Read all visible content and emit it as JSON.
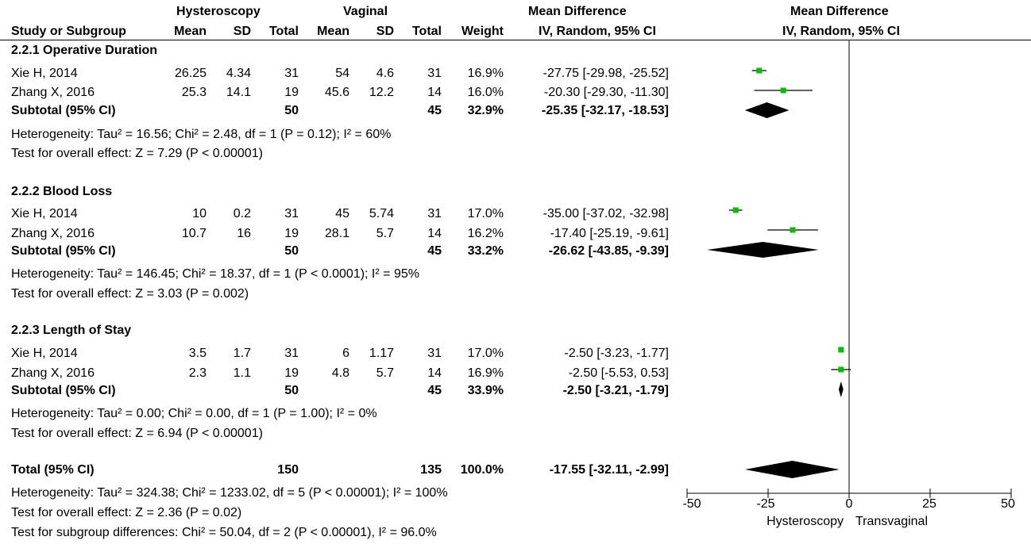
{
  "headers": {
    "group1": "Hysteroscopy",
    "group2": "Vaginal",
    "md_title": "Mean Difference",
    "md_method": "IV, Random, 95% CI",
    "plot_title": "Mean Difference",
    "plot_method": "IV, Random, 95% CI",
    "study_col": "Study or Subgroup",
    "mean": "Mean",
    "sd": "SD",
    "total": "Total",
    "weight": "Weight"
  },
  "subgroups": [
    {
      "title": "2.2.1 Operative Duration",
      "studies": [
        {
          "name": "Xie H, 2014",
          "m1": "26.25",
          "sd1": "4.34",
          "n1": "31",
          "m2": "54",
          "sd2": "4.6",
          "n2": "31",
          "weight": "16.9%",
          "ci": "-27.75 [-29.98, -25.52]"
        },
        {
          "name": "Zhang X, 2016",
          "m1": "25.3",
          "sd1": "14.1",
          "n1": "19",
          "m2": "45.6",
          "sd2": "12.2",
          "n2": "14",
          "weight": "16.0%",
          "ci": "-20.30 [-29.30, -11.30]"
        }
      ],
      "subtotal": {
        "label": "Subtotal (95% CI)",
        "n1": "50",
        "n2": "45",
        "weight": "32.9%",
        "ci": "-25.35 [-32.17, -18.53]"
      },
      "heterogeneity": "Heterogeneity: Tau² = 16.56; Chi² = 2.48, df = 1 (P = 0.12); I² = 60%",
      "overall": "Test for overall effect: Z = 7.29 (P < 0.00001)"
    },
    {
      "title": "2.2.2 Blood Loss",
      "studies": [
        {
          "name": "Xie H, 2014",
          "m1": "10",
          "sd1": "0.2",
          "n1": "31",
          "m2": "45",
          "sd2": "5.74",
          "n2": "31",
          "weight": "17.0%",
          "ci": "-35.00 [-37.02, -32.98]"
        },
        {
          "name": "Zhang X, 2016",
          "m1": "10.7",
          "sd1": "16",
          "n1": "19",
          "m2": "28.1",
          "sd2": "5.7",
          "n2": "14",
          "weight": "16.2%",
          "ci": "-17.40 [-25.19, -9.61]"
        }
      ],
      "subtotal": {
        "label": "Subtotal (95% CI)",
        "n1": "50",
        "n2": "45",
        "weight": "33.2%",
        "ci": "-26.62 [-43.85, -9.39]"
      },
      "heterogeneity": "Heterogeneity: Tau² = 146.45; Chi² = 18.37, df = 1 (P < 0.0001); I² = 95%",
      "overall": "Test for overall effect: Z = 3.03 (P = 0.002)"
    },
    {
      "title": "2.2.3 Length of Stay",
      "studies": [
        {
          "name": "Xie H, 2014",
          "m1": "3.5",
          "sd1": "1.7",
          "n1": "31",
          "m2": "6",
          "sd2": "1.17",
          "n2": "31",
          "weight": "17.0%",
          "ci": "-2.50 [-3.23, -1.77]"
        },
        {
          "name": "Zhang X, 2016",
          "m1": "2.3",
          "sd1": "1.1",
          "n1": "19",
          "m2": "4.8",
          "sd2": "5.7",
          "n2": "14",
          "weight": "16.9%",
          "ci": "-2.50 [-5.53, 0.53]"
        }
      ],
      "subtotal": {
        "label": "Subtotal (95% CI)",
        "n1": "50",
        "n2": "45",
        "weight": "33.9%",
        "ci": "-2.50 [-3.21, -1.79]"
      },
      "heterogeneity": "Heterogeneity: Tau² = 0.00; Chi² = 0.00, df = 1 (P = 1.00); I² = 0%",
      "overall": "Test for overall effect: Z = 6.94 (P < 0.00001)"
    }
  ],
  "total": {
    "label": "Total (95% CI)",
    "n1": "150",
    "n2": "135",
    "weight": "100.0%",
    "ci": "-17.55 [-32.11, -2.99]",
    "heterogeneity": "Heterogeneity: Tau² = 324.38; Chi² = 1233.02, df = 5 (P < 0.00001); I² = 100%",
    "overall": "Test for overall effect: Z = 2.36 (P = 0.02)",
    "subgroup_diff": "Test for subgroup differences: Chi² = 50.04, df = 2 (P < 0.00001), I² = 96.0%"
  },
  "axis": {
    "ticks": [
      "-50",
      "-25",
      "0",
      "25",
      "50"
    ],
    "left_label": "Hysteroscopy",
    "right_label": "Transvaginal"
  },
  "colors": {
    "point": "#00c000",
    "diamond": "#000000",
    "line": "#000000"
  },
  "chart_data": {
    "type": "forest",
    "xlim": [
      -50,
      50
    ],
    "xticks": [
      -50,
      -25,
      0,
      25,
      50
    ],
    "rows": [
      {
        "kind": "study",
        "est": -27.75,
        "lo": -29.98,
        "hi": -25.52,
        "weight": 16.9
      },
      {
        "kind": "study",
        "est": -20.3,
        "lo": -29.3,
        "hi": -11.3,
        "weight": 16.0
      },
      {
        "kind": "subtotal",
        "est": -25.35,
        "lo": -32.17,
        "hi": -18.53
      },
      {
        "kind": "study",
        "est": -35.0,
        "lo": -37.02,
        "hi": -32.98,
        "weight": 17.0
      },
      {
        "kind": "study",
        "est": -17.4,
        "lo": -25.19,
        "hi": -9.61,
        "weight": 16.2
      },
      {
        "kind": "subtotal",
        "est": -26.62,
        "lo": -43.85,
        "hi": -9.39
      },
      {
        "kind": "study",
        "est": -2.5,
        "lo": -3.23,
        "hi": -1.77,
        "weight": 17.0
      },
      {
        "kind": "study",
        "est": -2.5,
        "lo": -5.53,
        "hi": 0.53,
        "weight": 16.9
      },
      {
        "kind": "subtotal",
        "est": -2.5,
        "lo": -3.21,
        "hi": -1.79
      },
      {
        "kind": "total",
        "est": -17.55,
        "lo": -32.11,
        "hi": -2.99
      }
    ]
  }
}
